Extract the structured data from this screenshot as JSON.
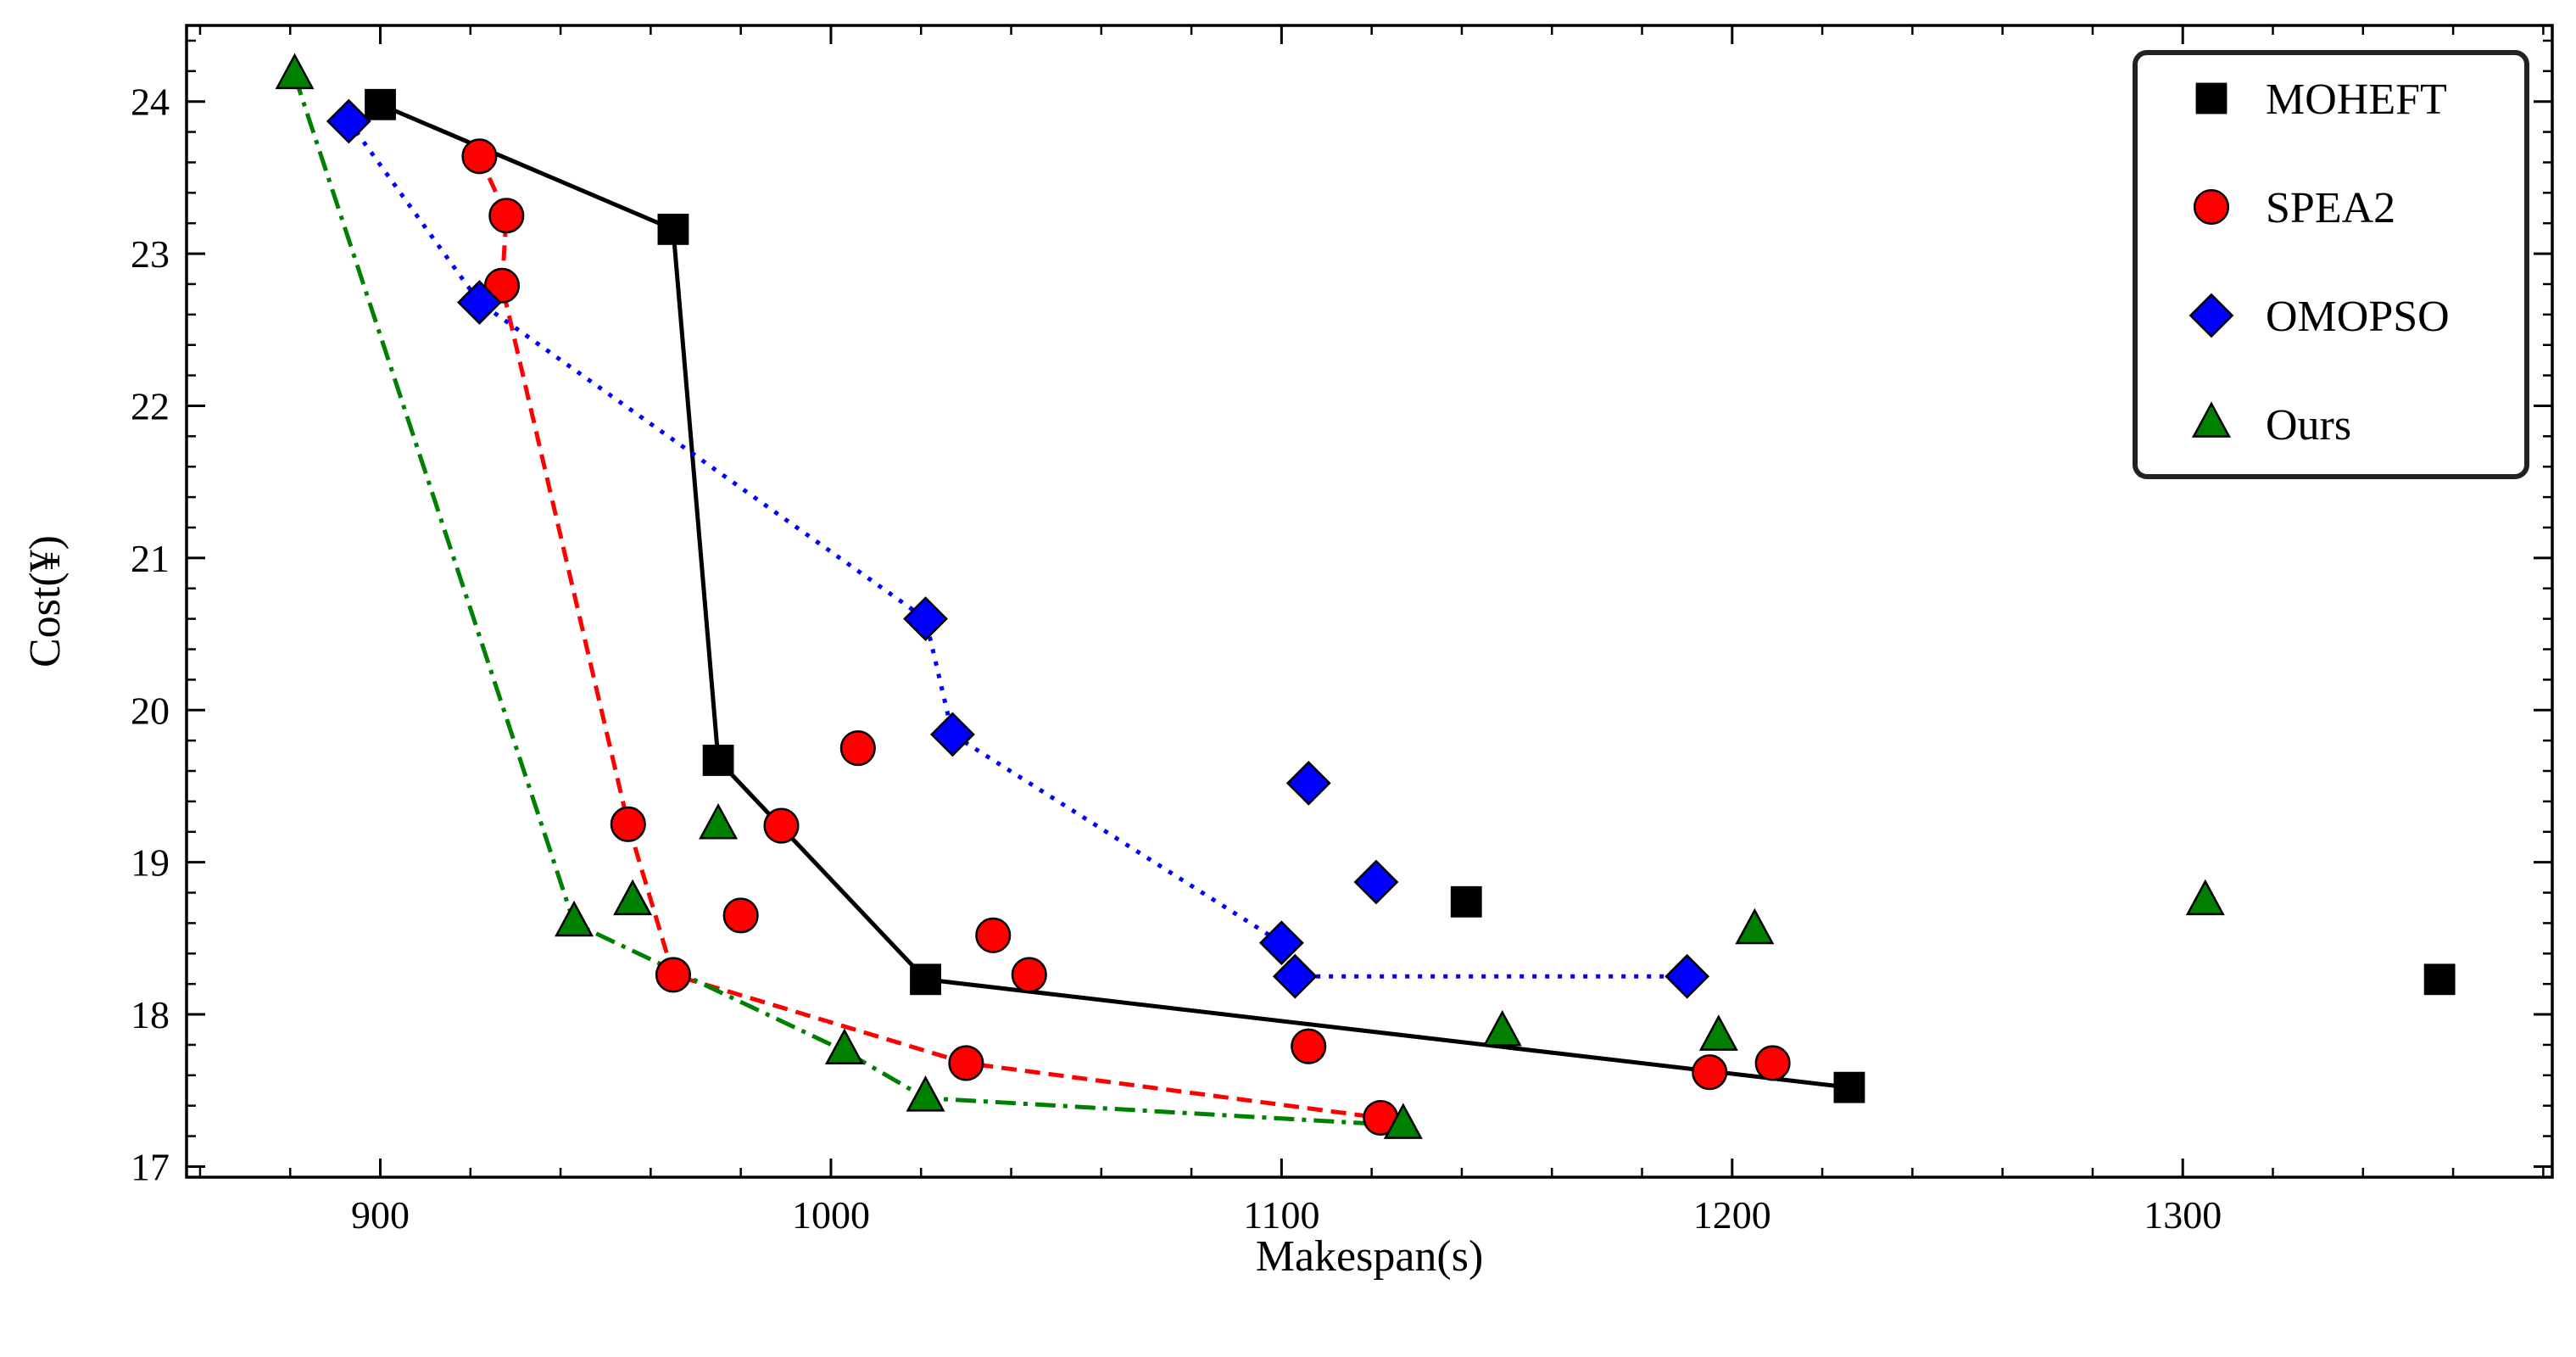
{
  "chart_data": {
    "type": "scatter",
    "title": "",
    "xlabel": "Makespan(s)",
    "ylabel": "Cost(¥)",
    "xlim": [
      857,
      1382
    ],
    "ylim": [
      16.93,
      24.5
    ],
    "xticks": [
      900,
      1000,
      1100,
      1200,
      1300
    ],
    "yticks": [
      17,
      18,
      19,
      20,
      21,
      22,
      23,
      24
    ],
    "xtick_labels": [
      "900",
      "1000",
      "1100",
      "1200",
      "1300"
    ],
    "ytick_labels": [
      "17",
      "18",
      "19",
      "20",
      "21",
      "22",
      "23",
      "24"
    ],
    "grid": false,
    "legend_position": "top-right",
    "series": [
      {
        "name": "MOHEFT",
        "marker": "square",
        "color": "#000000",
        "line_style": "solid",
        "points": [
          [
            900,
            23.98
          ],
          [
            965,
            23.16
          ],
          [
            975,
            19.67
          ],
          [
            1021,
            18.23
          ],
          [
            1141,
            18.74
          ],
          [
            1226,
            17.52
          ],
          [
            1357,
            18.23
          ]
        ],
        "front": [
          [
            900,
            23.98
          ],
          [
            965,
            23.16
          ],
          [
            975,
            19.67
          ],
          [
            1021,
            18.23
          ],
          [
            1226,
            17.52
          ]
        ]
      },
      {
        "name": "SPEA2",
        "marker": "circle",
        "color": "#ff0000",
        "line_style": "dashed",
        "points": [
          [
            922,
            23.64
          ],
          [
            928,
            23.25
          ],
          [
            927,
            22.79
          ],
          [
            955,
            19.25
          ],
          [
            965,
            18.26
          ],
          [
            980,
            18.65
          ],
          [
            989,
            19.24
          ],
          [
            1006,
            19.75
          ],
          [
            1030,
            17.68
          ],
          [
            1036,
            18.52
          ],
          [
            1044,
            18.26
          ],
          [
            1106,
            17.79
          ],
          [
            1122,
            17.32
          ],
          [
            1195,
            17.62
          ],
          [
            1209,
            17.68
          ]
        ],
        "front": [
          [
            922,
            23.64
          ],
          [
            928,
            23.25
          ],
          [
            927,
            22.79
          ],
          [
            955,
            19.25
          ],
          [
            965,
            18.26
          ],
          [
            1030,
            17.68
          ],
          [
            1122,
            17.32
          ]
        ]
      },
      {
        "name": "OMOPSO",
        "marker": "diamond",
        "color": "#0000ff",
        "line_style": "dotted",
        "points": [
          [
            893,
            23.87
          ],
          [
            922,
            22.68
          ],
          [
            1021,
            20.6
          ],
          [
            1027,
            19.84
          ],
          [
            1106,
            19.52
          ],
          [
            1121,
            18.87
          ],
          [
            1100,
            18.47
          ],
          [
            1103,
            18.25
          ],
          [
            1190,
            18.25
          ]
        ],
        "front": [
          [
            893,
            23.87
          ],
          [
            922,
            22.68
          ],
          [
            1021,
            20.6
          ],
          [
            1027,
            19.84
          ],
          [
            1100,
            18.47
          ],
          [
            1103,
            18.25
          ],
          [
            1190,
            18.25
          ]
        ]
      },
      {
        "name": "Ours",
        "marker": "triangle",
        "color": "#008000",
        "line_style": "dashdot",
        "points": [
          [
            881,
            24.17
          ],
          [
            943,
            18.6
          ],
          [
            956,
            18.74
          ],
          [
            975,
            19.24
          ],
          [
            1003,
            17.76
          ],
          [
            1021,
            17.45
          ],
          [
            1127,
            17.27
          ],
          [
            1149,
            17.88
          ],
          [
            1197,
            17.85
          ],
          [
            1205,
            18.55
          ],
          [
            1305,
            18.74
          ]
        ],
        "front": [
          [
            881,
            24.17
          ],
          [
            943,
            18.6
          ],
          [
            1003,
            17.76
          ],
          [
            1021,
            17.45
          ],
          [
            1127,
            17.27
          ]
        ]
      }
    ]
  }
}
